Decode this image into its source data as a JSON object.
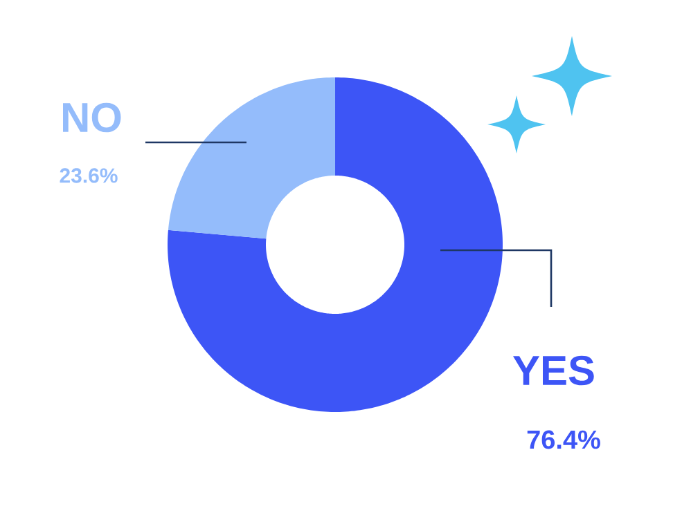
{
  "chart_data": {
    "type": "donut",
    "categories": [
      "YES",
      "NO"
    ],
    "values": [
      76.4,
      23.6
    ],
    "colors": [
      "#3d55f6",
      "#94bcfb"
    ],
    "value_labels": [
      "76.4%",
      "23.6%"
    ]
  }
}
